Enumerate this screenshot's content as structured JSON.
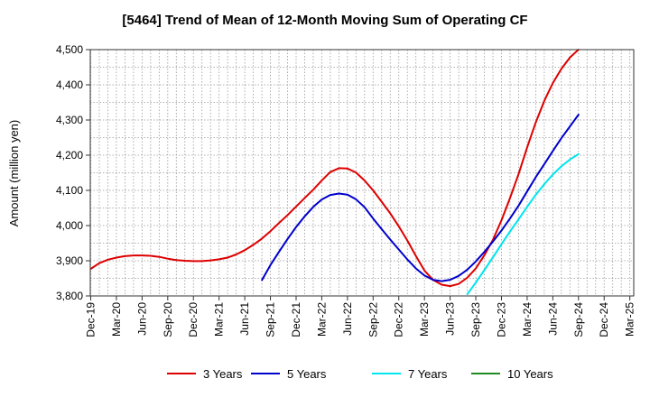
{
  "chart_data": {
    "type": "line",
    "title": "[5464]  Trend of Mean of 12-Month Moving Sum of Operating CF",
    "xlabel": "",
    "ylabel": "Amount (million yen)",
    "ylim": [
      3800,
      4500
    ],
    "yticks": [
      "3,800",
      "3,900",
      "4,000",
      "4,100",
      "4,200",
      "4,300",
      "4,400",
      "4,500"
    ],
    "categories": [
      "Dec-19",
      "Mar-20",
      "Jun-20",
      "Sep-20",
      "Dec-20",
      "Mar-21",
      "Jun-21",
      "Sep-21",
      "Dec-21",
      "Mar-22",
      "Jun-22",
      "Sep-22",
      "Dec-22",
      "Mar-23",
      "Jun-23",
      "Sep-23",
      "Dec-23",
      "Mar-24",
      "Jun-24",
      "Sep-24",
      "Dec-24",
      "Mar-25"
    ],
    "grid": true,
    "legend_position": "bottom",
    "series": [
      {
        "name": "3 Years",
        "color": "#dd0000",
        "x": [
          0,
          0.33,
          0.67,
          1,
          1.33,
          1.67,
          2,
          2.33,
          2.67,
          3,
          3.33,
          3.67,
          4,
          4.33,
          4.67,
          5,
          5.33,
          5.67,
          6,
          6.33,
          6.67,
          7,
          7.33,
          7.67,
          8,
          8.33,
          8.67,
          9,
          9.33,
          9.67,
          10,
          10.33,
          10.67,
          11,
          11.33,
          11.67,
          12,
          12.33,
          12.67,
          13,
          13.33,
          13.67,
          14,
          14.33,
          14.67,
          15,
          15.33,
          15.67,
          16,
          16.33,
          16.67,
          17,
          17.33,
          17.67,
          18,
          18.33,
          18.67,
          19
        ],
        "values": [
          3877,
          3893,
          3903,
          3909,
          3913,
          3915,
          3915,
          3914,
          3911,
          3906,
          3902,
          3900,
          3899,
          3899,
          3901,
          3904,
          3909,
          3918,
          3930,
          3945,
          3963,
          3984,
          4007,
          4030,
          4054,
          4078,
          4102,
          4128,
          4152,
          4163,
          4162,
          4151,
          4128,
          4100,
          4068,
          4034,
          3998,
          3958,
          3913,
          3872,
          3846,
          3832,
          3828,
          3834,
          3852,
          3878,
          3915,
          3960,
          4015,
          4078,
          4147,
          4222,
          4292,
          4355,
          4405,
          4445,
          4478,
          4500
        ]
      },
      {
        "name": "5 Years",
        "color": "#0000cc",
        "x": [
          6.67,
          7,
          7.33,
          7.67,
          8,
          8.33,
          8.67,
          9,
          9.33,
          9.67,
          10,
          10.33,
          10.67,
          11,
          11.33,
          11.67,
          12,
          12.33,
          12.67,
          13,
          13.33,
          13.67,
          14,
          14.33,
          14.67,
          15,
          15.33,
          15.67,
          16,
          16.33,
          16.67,
          17,
          17.33,
          17.67,
          18,
          18.33,
          18.67,
          19
        ],
        "values": [
          3845,
          3888,
          3925,
          3962,
          3996,
          4026,
          4053,
          4074,
          4087,
          4091,
          4088,
          4075,
          4052,
          4020,
          3990,
          3960,
          3932,
          3904,
          3878,
          3858,
          3846,
          3842,
          3846,
          3857,
          3875,
          3898,
          3925,
          3955,
          3986,
          4020,
          4057,
          4097,
          4137,
          4175,
          4212,
          4248,
          4282,
          4315
        ]
      },
      {
        "name": "7 Years",
        "color": "#00e5ee",
        "x": [
          14.67,
          15,
          15.33,
          15.67,
          16,
          16.33,
          16.67,
          17,
          17.33,
          17.67,
          18,
          18.33,
          18.67,
          19
        ],
        "values": [
          3805,
          3838,
          3873,
          3910,
          3947,
          3983,
          4018,
          4053,
          4087,
          4118,
          4145,
          4168,
          4188,
          4203
        ]
      },
      {
        "name": "10 Years",
        "color": "#228b22",
        "x": [],
        "values": []
      }
    ]
  }
}
